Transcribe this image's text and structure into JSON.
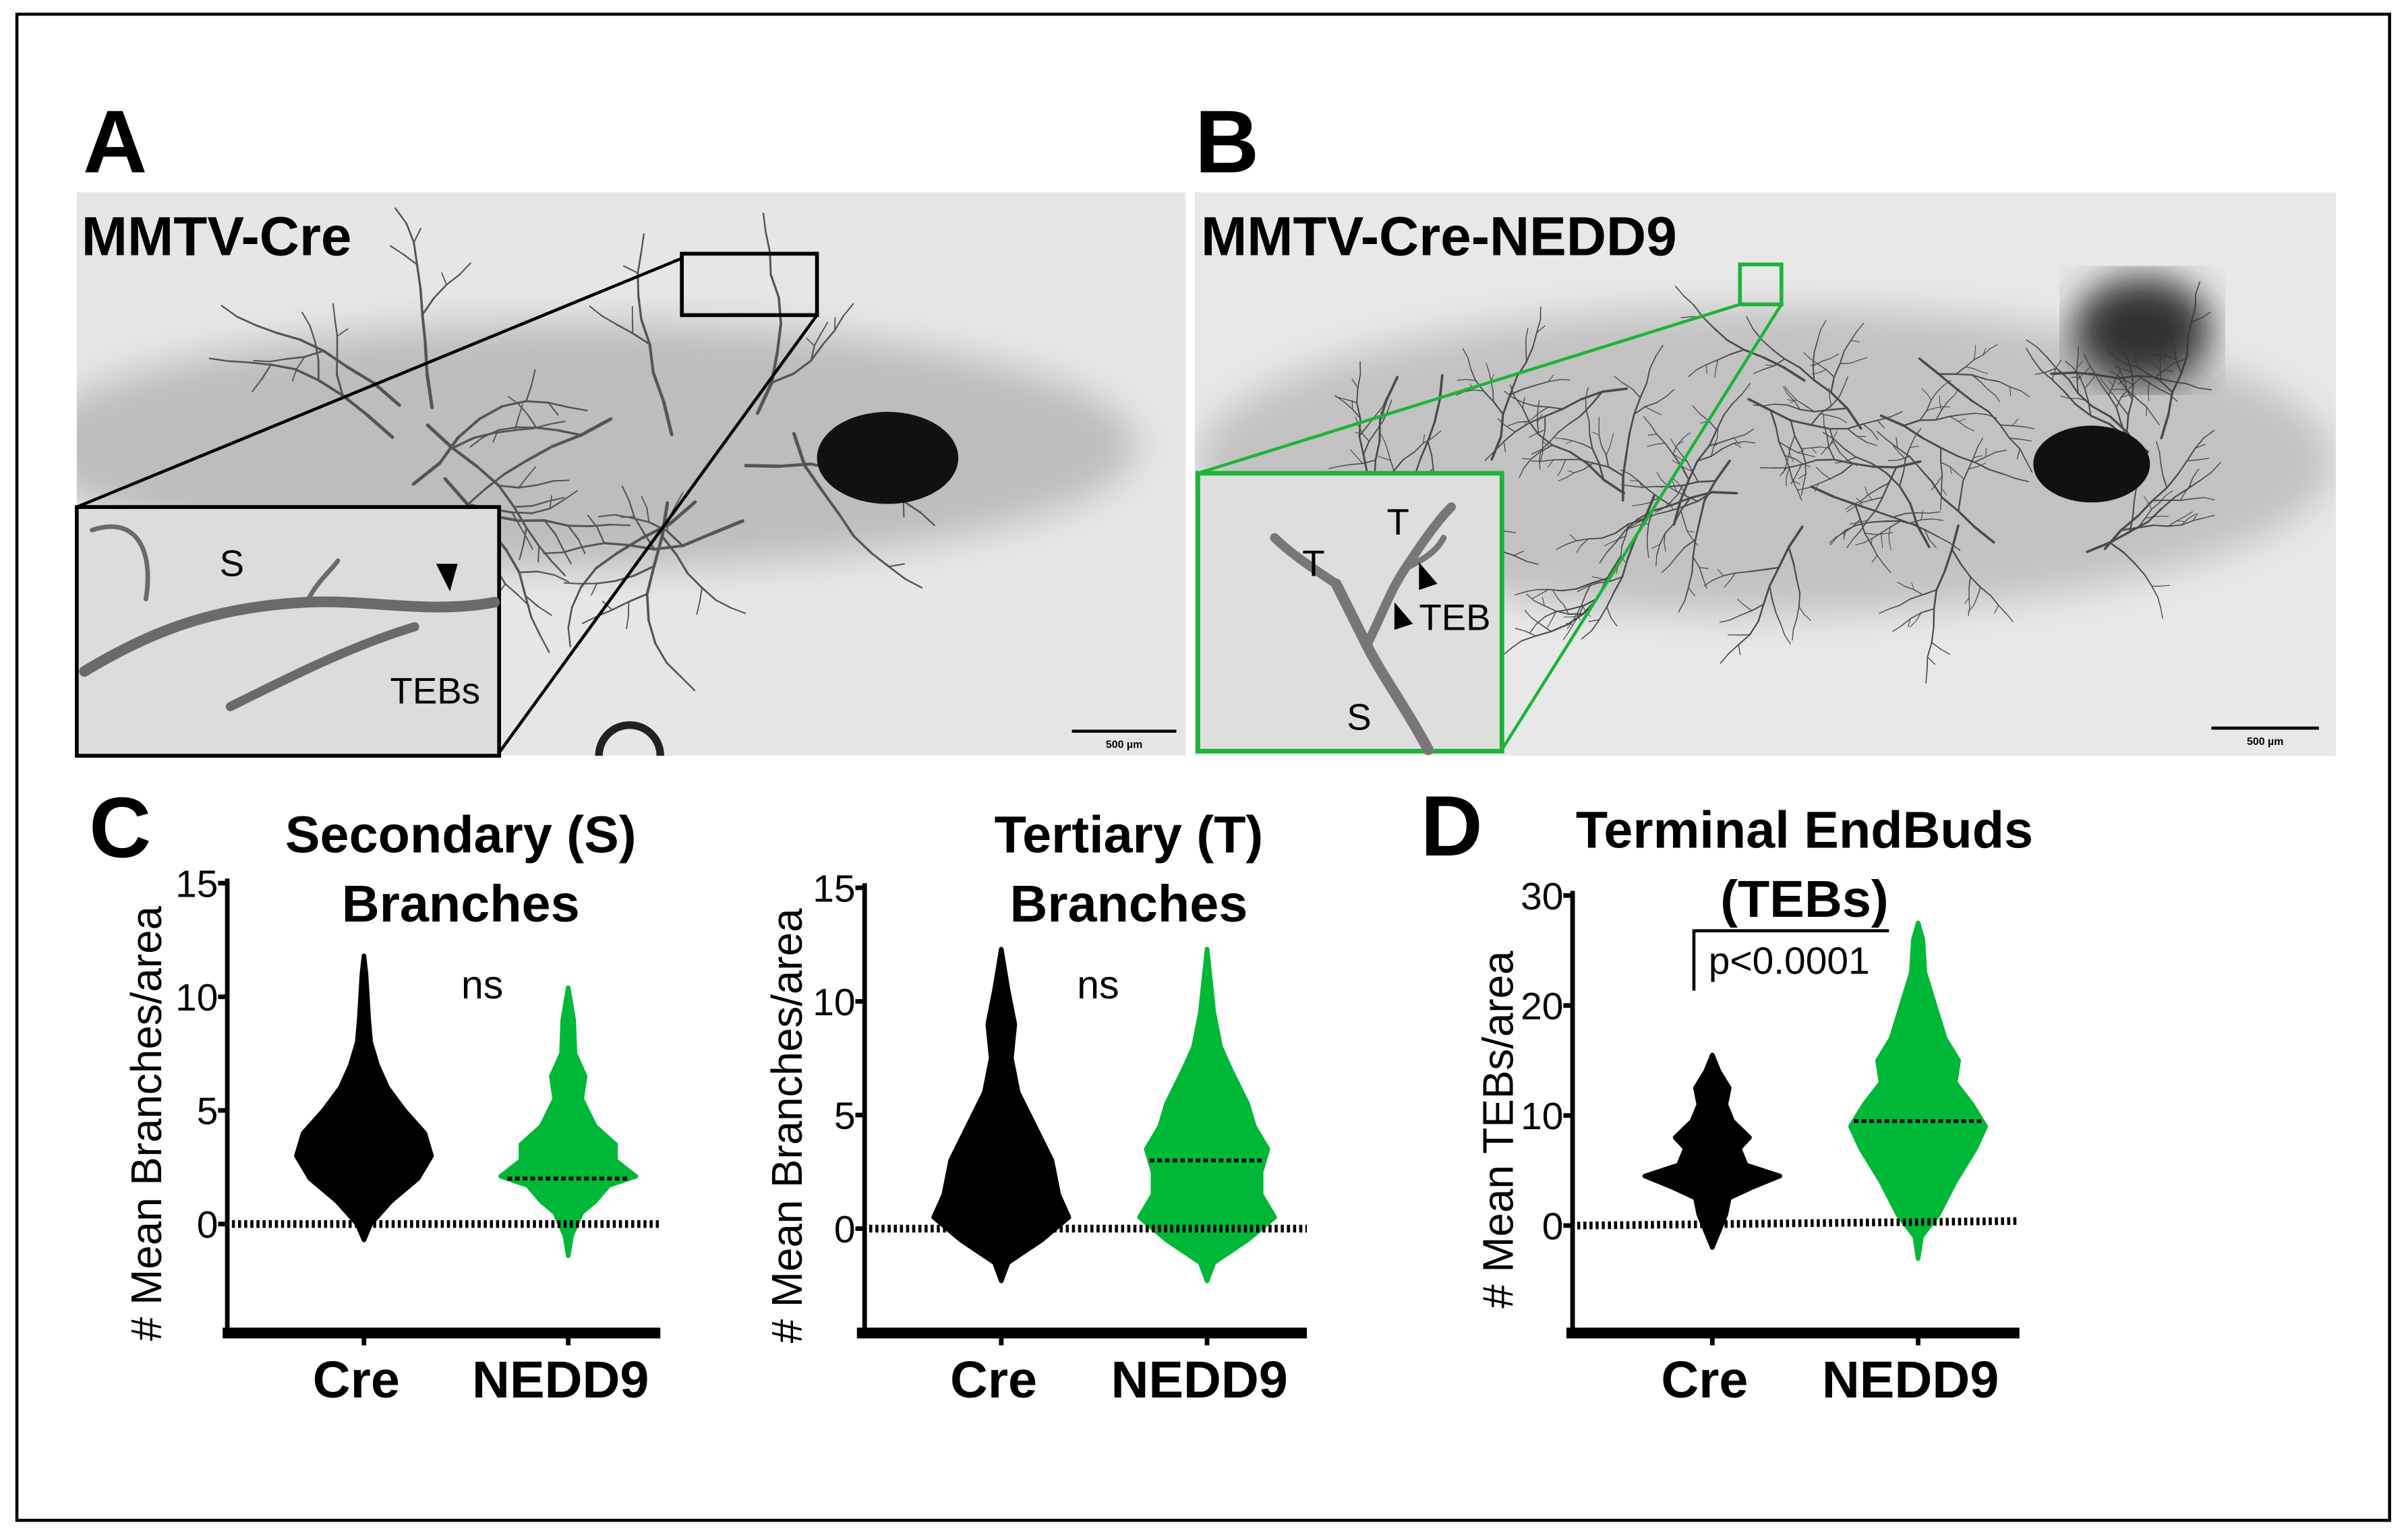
{
  "colors": {
    "cre": "#000000",
    "nedd9": "#00b837",
    "frame": "#000000",
    "inset_a": "#000000",
    "inset_b": "#1db33a",
    "micrograph_bg": "#e4e4e4"
  },
  "panel_a": {
    "letter": "A",
    "title": "MMTV-Cre",
    "inset_labels": {
      "s": "S",
      "tebs": "TEBs"
    },
    "scale_bar": "500 µm"
  },
  "panel_b": {
    "letter": "B",
    "title": "MMTV-Cre-NEDD9",
    "inset_labels": {
      "t1": "T",
      "t2": "T",
      "teb": "TEB",
      "s": "S"
    },
    "scale_bar": "500 µm"
  },
  "panel_c_letter": "C",
  "panel_d_letter": "D",
  "chart_data": [
    {
      "type": "violin",
      "title": [
        "Secondary (S)",
        "Branches"
      ],
      "ylabel": "# Mean Branches/area",
      "categories": [
        "Cre",
        "NEDD9"
      ],
      "yticks": [
        "0",
        "5",
        "10",
        "15"
      ],
      "ylim": [
        -4.8,
        15
      ],
      "annotation": "ns",
      "series": [
        {
          "name": "Cre",
          "median": null,
          "profile": [
            [
              -0.7,
              0
            ],
            [
              0,
              0.1
            ],
            [
              1,
              0.4
            ],
            [
              2,
              0.8
            ],
            [
              3,
              1
            ],
            [
              4,
              0.9
            ],
            [
              5,
              0.6
            ],
            [
              6,
              0.35
            ],
            [
              7,
              0.2
            ],
            [
              8,
              0.1
            ],
            [
              9,
              0.07
            ],
            [
              10,
              0.05
            ],
            [
              11,
              0.03
            ],
            [
              11.8,
              0
            ]
          ]
        },
        {
          "name": "NEDD9",
          "median": 2.0,
          "profile": [
            [
              -1.4,
              0
            ],
            [
              -0.5,
              0.05
            ],
            [
              0.5,
              0.2
            ],
            [
              1,
              0.4
            ],
            [
              1.7,
              0.6
            ],
            [
              2.1,
              1
            ],
            [
              2.8,
              0.7
            ],
            [
              3.5,
              0.7
            ],
            [
              4.3,
              0.4
            ],
            [
              5.5,
              0.2
            ],
            [
              6.5,
              0.25
            ],
            [
              7.5,
              0.1
            ],
            [
              9,
              0.08
            ],
            [
              10.4,
              0
            ]
          ]
        }
      ]
    },
    {
      "type": "violin",
      "title": [
        "Tertiary (T)",
        "Branches"
      ],
      "ylabel": "# Mean Branches/area",
      "categories": [
        "Cre",
        "NEDD9"
      ],
      "yticks": [
        "0",
        "5",
        "10",
        "15"
      ],
      "ylim": [
        -4.8,
        15
      ],
      "annotation": "ns",
      "series": [
        {
          "name": "Cre",
          "median": null,
          "profile": [
            [
              -2.3,
              0
            ],
            [
              -1.5,
              0.1
            ],
            [
              -0.5,
              0.6
            ],
            [
              0.5,
              1
            ],
            [
              1.5,
              0.85
            ],
            [
              3,
              0.75
            ],
            [
              4.5,
              0.5
            ],
            [
              6,
              0.25
            ],
            [
              7.5,
              0.15
            ],
            [
              9,
              0.2
            ],
            [
              10.5,
              0.1
            ],
            [
              12.3,
              0
            ]
          ]
        },
        {
          "name": "NEDD9",
          "median": 3.0,
          "profile": [
            [
              -2.3,
              0
            ],
            [
              -1.5,
              0.1
            ],
            [
              -0.5,
              0.6
            ],
            [
              0.5,
              1
            ],
            [
              1.5,
              0.8
            ],
            [
              2.5,
              0.8
            ],
            [
              3.5,
              0.9
            ],
            [
              4.5,
              0.7
            ],
            [
              5.5,
              0.6
            ],
            [
              7,
              0.35
            ],
            [
              8,
              0.2
            ],
            [
              9.5,
              0.1
            ],
            [
              12.3,
              0
            ]
          ]
        }
      ]
    },
    {
      "type": "violin",
      "title": [
        "Terminal EndBuds",
        "(TEBs)"
      ],
      "ylabel": "# Mean TEBs/area",
      "categories": [
        "Cre",
        "NEDD9"
      ],
      "yticks": [
        "0",
        "10",
        "20",
        "30"
      ],
      "ylim": [
        -9.7,
        30
      ],
      "annotation": "p<0.0001",
      "series": [
        {
          "name": "Cre",
          "median": null,
          "profile": [
            [
              -2,
              0
            ],
            [
              -0.5,
              0.1
            ],
            [
              1,
              0.2
            ],
            [
              2.5,
              0.25
            ],
            [
              3.5,
              0.6
            ],
            [
              4.5,
              1
            ],
            [
              5.5,
              0.5
            ],
            [
              7,
              0.4
            ],
            [
              8,
              0.55
            ],
            [
              9.5,
              0.3
            ],
            [
              11,
              0.2
            ],
            [
              12.5,
              0.25
            ],
            [
              14,
              0.1
            ],
            [
              15.5,
              0
            ]
          ]
        },
        {
          "name": "NEDD9",
          "median": 9.5,
          "profile": [
            [
              -3,
              0
            ],
            [
              -1,
              0.05
            ],
            [
              1,
              0.3
            ],
            [
              4,
              0.55
            ],
            [
              7,
              0.85
            ],
            [
              9,
              1
            ],
            [
              11,
              0.8
            ],
            [
              13,
              0.55
            ],
            [
              15,
              0.6
            ],
            [
              17,
              0.4
            ],
            [
              20,
              0.25
            ],
            [
              23,
              0.1
            ],
            [
              26,
              0.07
            ],
            [
              27.5,
              0
            ]
          ]
        }
      ]
    }
  ]
}
